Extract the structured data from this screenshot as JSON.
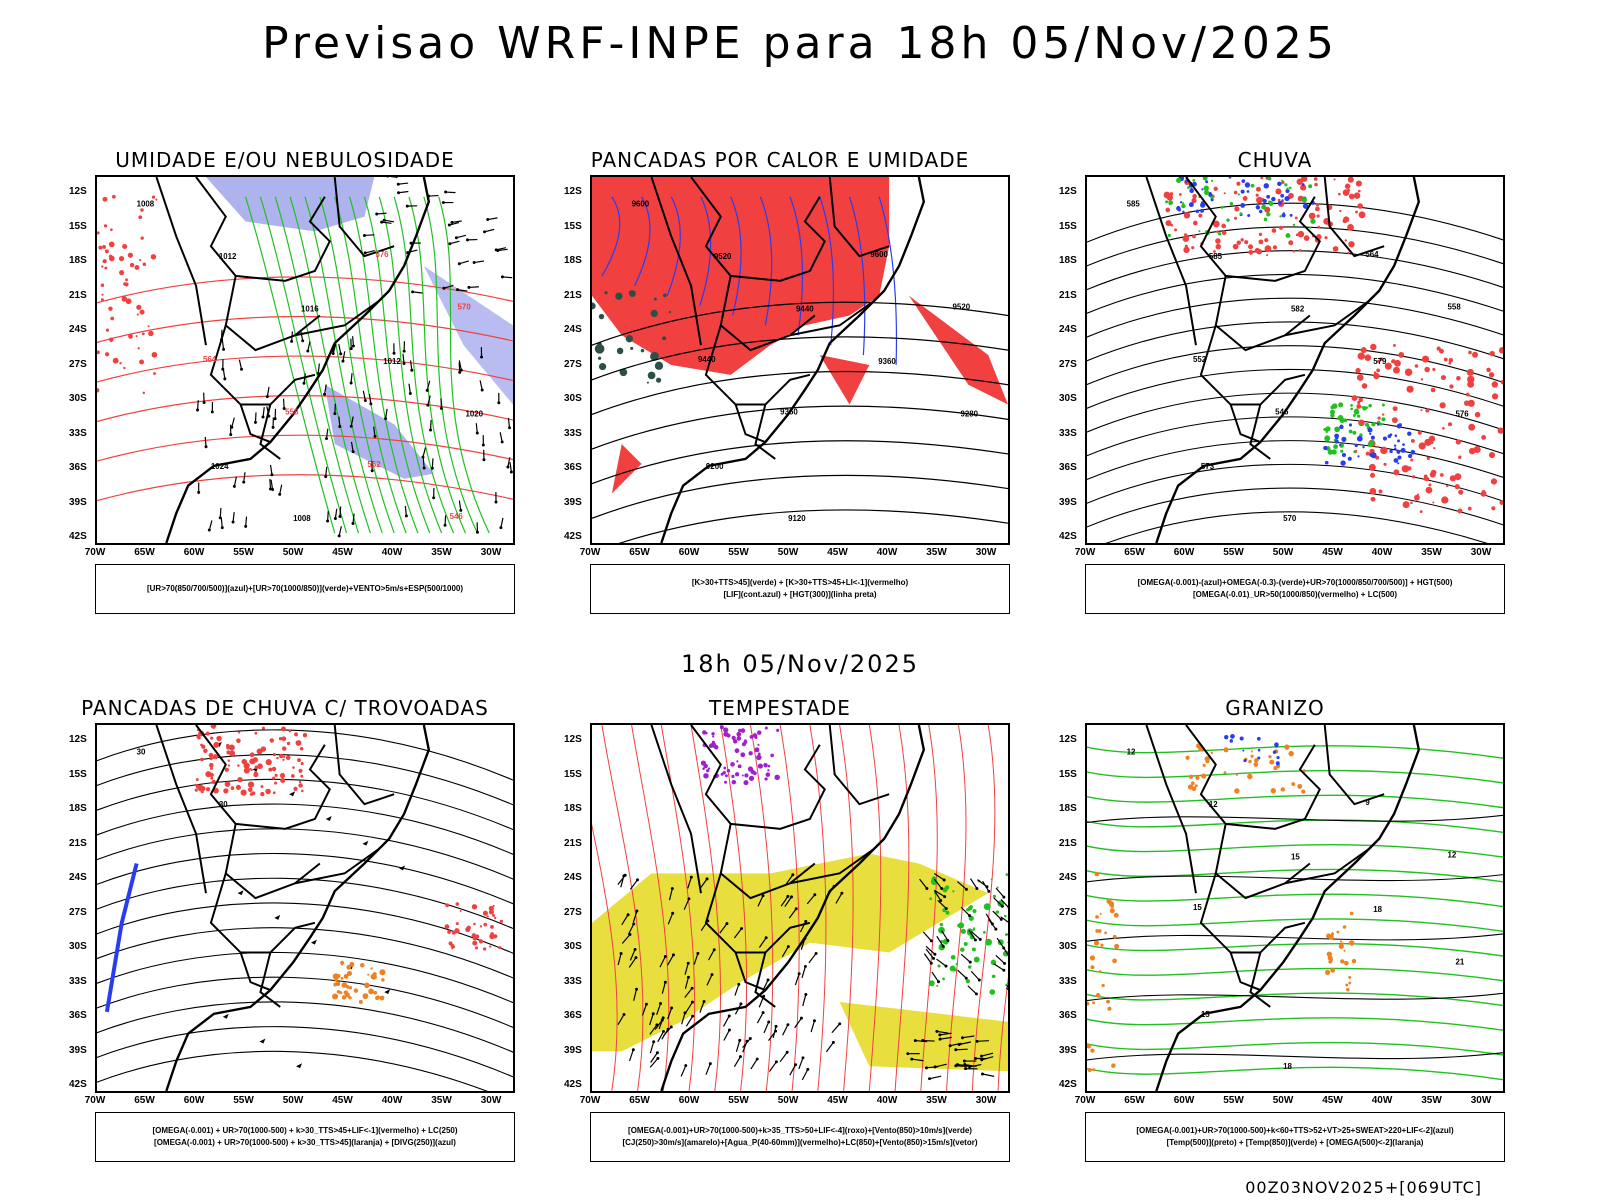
{
  "title": "Previsao WRF-INPE  para 18h 05/Nov/2025",
  "mid_title": "18h 05/Nov/2025",
  "footer": "00Z03NOV2025+[069UTC]",
  "lat_labels": [
    "12S",
    "15S",
    "18S",
    "21S",
    "24S",
    "27S",
    "30S",
    "33S",
    "36S",
    "39S",
    "42S"
  ],
  "lon_labels": [
    "70W",
    "65W",
    "60W",
    "55W",
    "50W",
    "45W",
    "40W",
    "35W",
    "30W"
  ],
  "colors": {
    "red": "#f04040",
    "green": "#20c020",
    "blue": "#2a3cf0",
    "lavender": "#9aa0ea",
    "yellow": "#e6dc2a",
    "orange": "#f08020",
    "purple": "#a020d0",
    "darkgreen": "#2a5048"
  },
  "panels": [
    {
      "title": "UMIDADE E/OU NEBULOSIDADE",
      "legend": [
        "[UR>70(850/700/500)](azul)+[UR>70(1000/850)](verde)+VENTO>5m/s+ESP(500/1000)"
      ],
      "contour_labels": [
        "1008",
        "1012",
        "1016",
        "1012",
        "1020",
        "1024",
        "1008",
        "576",
        "570",
        "564",
        "558",
        "552",
        "546"
      ]
    },
    {
      "title": "PANCADAS POR CALOR E UMIDADE",
      "legend": [
        "[K>30+TTS>45](verde) + [K>30+TTS>45+LI<-1](vermelho)",
        "[LIF](cont.azul) + [HGT(300)](linha preta)"
      ],
      "contour_labels": [
        "9600",
        "9520",
        "9440",
        "9360",
        "9280",
        "9200",
        "9120",
        "9600",
        "9520",
        "9440",
        "9360"
      ]
    },
    {
      "title": "CHUVA",
      "legend": [
        "[OMEGA(-0.001)-(azul)+OMEGA(-0.3)-(verde)+UR>70(1000/850/700/500)] + HGT(500)",
        "[OMEGA(-0.01)_UR>50(1000/850)(vermelho) + LC(500)"
      ],
      "contour_labels": [
        "585",
        "585",
        "582",
        "579",
        "576",
        "573",
        "570",
        "564",
        "558",
        "552",
        "546"
      ]
    },
    {
      "title": "PANCADAS DE CHUVA C/ TROVOADAS",
      "legend": [
        "[OMEGA(-0.001) + UR>70(1000-500) + k>30_TTS>45+LIF<-1](vermelho) + LC(250)",
        "[OMEGA(-0.001) + UR>70(1000-500) + k>30_TTS>45](laranja) + [DIVG(250)](azul)"
      ],
      "contour_labels": [
        "30",
        "30"
      ]
    },
    {
      "title": "TEMPESTADE",
      "legend": [
        "[OMEGA(-0.001)+UR>70(1000-500)+k>35_TTS>50+LIF<-4](roxo)+[Vento(850)>10m/s](verde)",
        "[CJ(250)>30m/s](amarelo)+[Agua_P(40-60mm)](vermelho)+LC(850)+[Vento(850)>15m/s](vetor)"
      ],
      "contour_labels": []
    },
    {
      "title": "GRANIZO",
      "legend": [
        "[OMEGA(-0.001)+UR>70(1000-500)+k<60+TTS>52+VT>25+SWEAT>220+LIF<-2](azul)",
        "[Temp(500)](preto) + [Temp(850)](verde) + [OMEGA(500)<-2](laranja)"
      ],
      "contour_labels": [
        "12",
        "12",
        "15",
        "18",
        "21",
        "15",
        "18",
        "9",
        "12",
        "15"
      ]
    }
  ]
}
